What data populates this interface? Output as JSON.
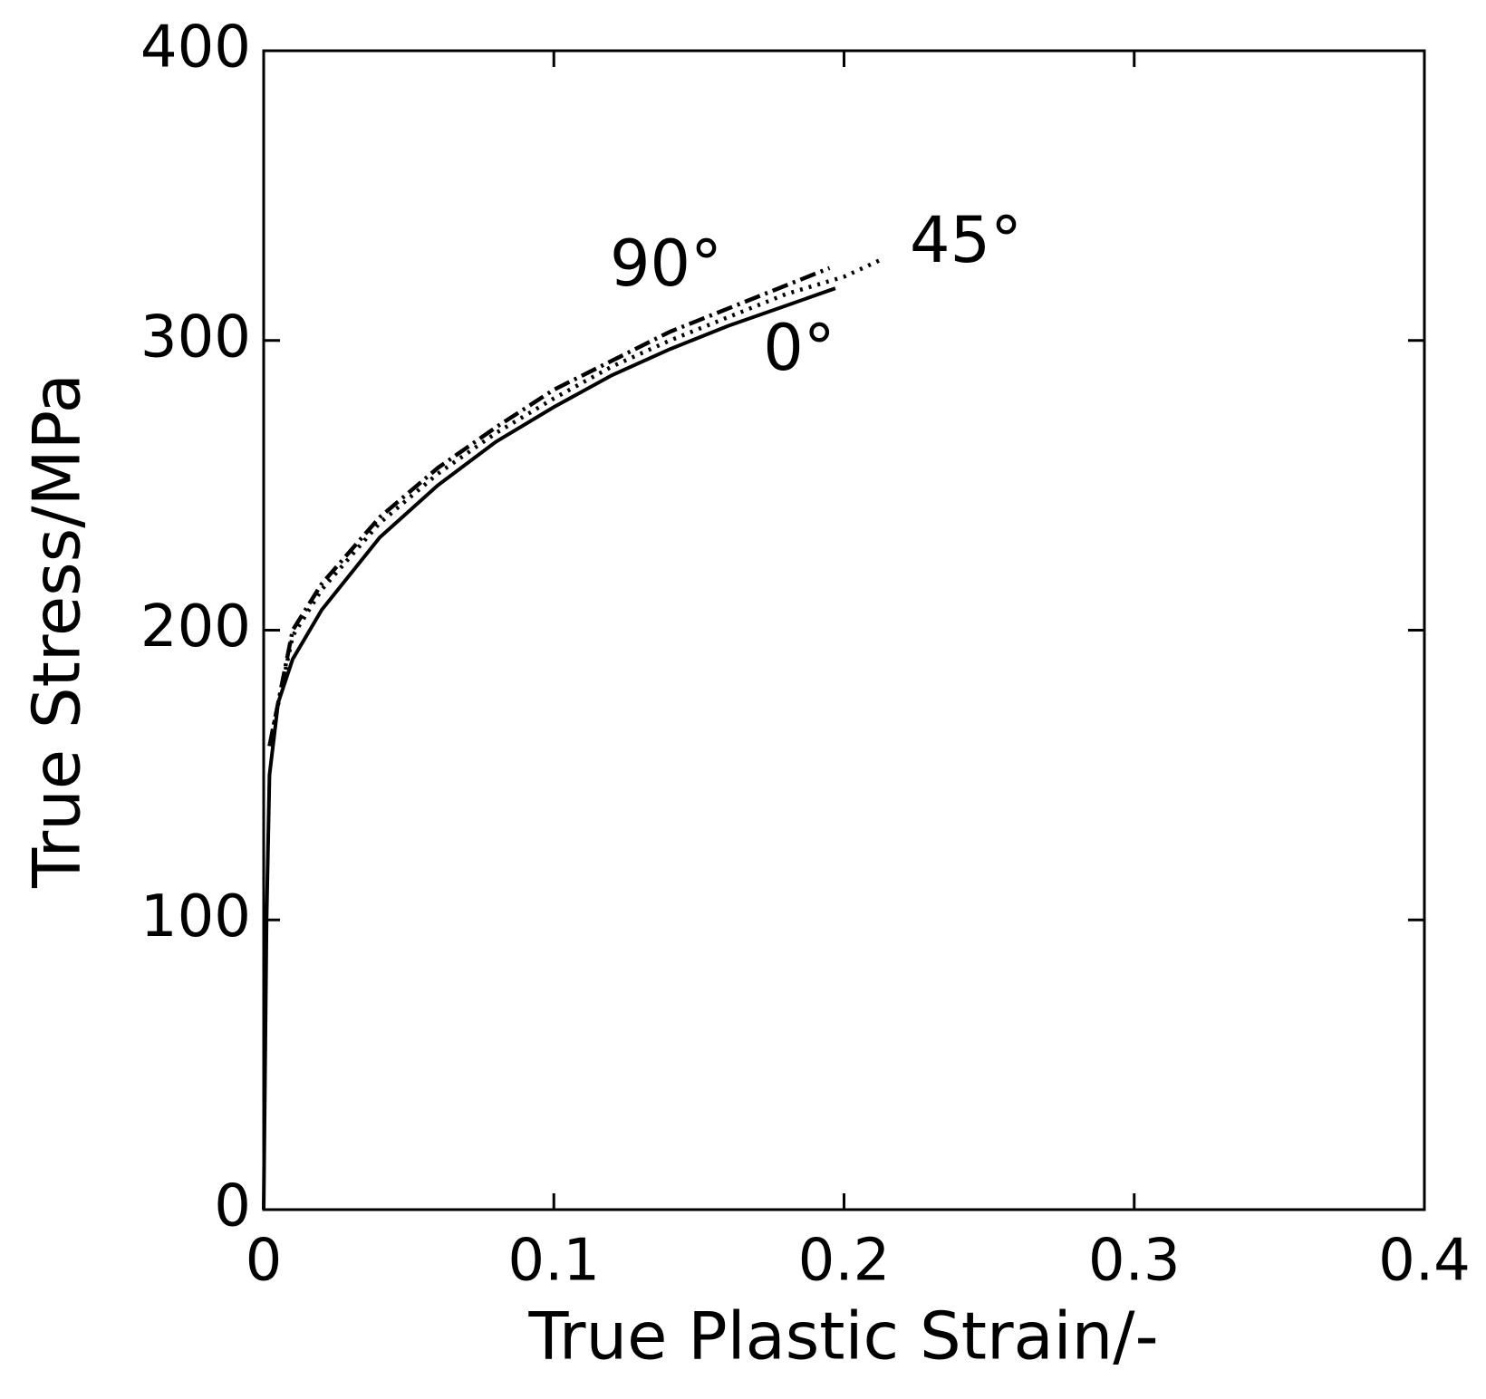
{
  "chart_data": {
    "type": "line",
    "xlabel": "True Plastic Strain/-",
    "ylabel": "True Stress/MPa",
    "xlim": [
      0,
      0.4
    ],
    "ylim": [
      0,
      400
    ],
    "xticks": [
      0,
      0.1,
      0.2,
      0.3,
      0.4
    ],
    "yticks": [
      0,
      100,
      200,
      300,
      400
    ],
    "annotations": [
      "90°",
      "45°",
      "0°"
    ],
    "series": [
      {
        "style": "solid",
        "color": "#000000",
        "x": [
          0,
          0.001,
          0.002,
          0.005,
          0.01,
          0.02,
          0.04,
          0.06,
          0.08,
          0.1,
          0.12,
          0.14,
          0.16,
          0.18,
          0.197
        ],
        "values": [
          0,
          100,
          150,
          175,
          190,
          207,
          232,
          250,
          265,
          277,
          288,
          297,
          305,
          312,
          318
        ]
      },
      {
        "style": "dotted",
        "color": "#000000",
        "x": [
          0.003,
          0.01,
          0.02,
          0.04,
          0.06,
          0.08,
          0.1,
          0.12,
          0.14,
          0.16,
          0.18,
          0.2,
          0.213
        ],
        "values": [
          165,
          198,
          214,
          237,
          254,
          268,
          280,
          291,
          300,
          308,
          316,
          322,
          328
        ]
      },
      {
        "style": "dashdot",
        "color": "#000000",
        "x": [
          0.002,
          0.01,
          0.02,
          0.04,
          0.06,
          0.08,
          0.1,
          0.12,
          0.14,
          0.16,
          0.18,
          0.195
        ],
        "values": [
          160,
          200,
          216,
          239,
          256,
          270,
          283,
          293,
          303,
          311,
          319,
          325
        ]
      }
    ]
  }
}
